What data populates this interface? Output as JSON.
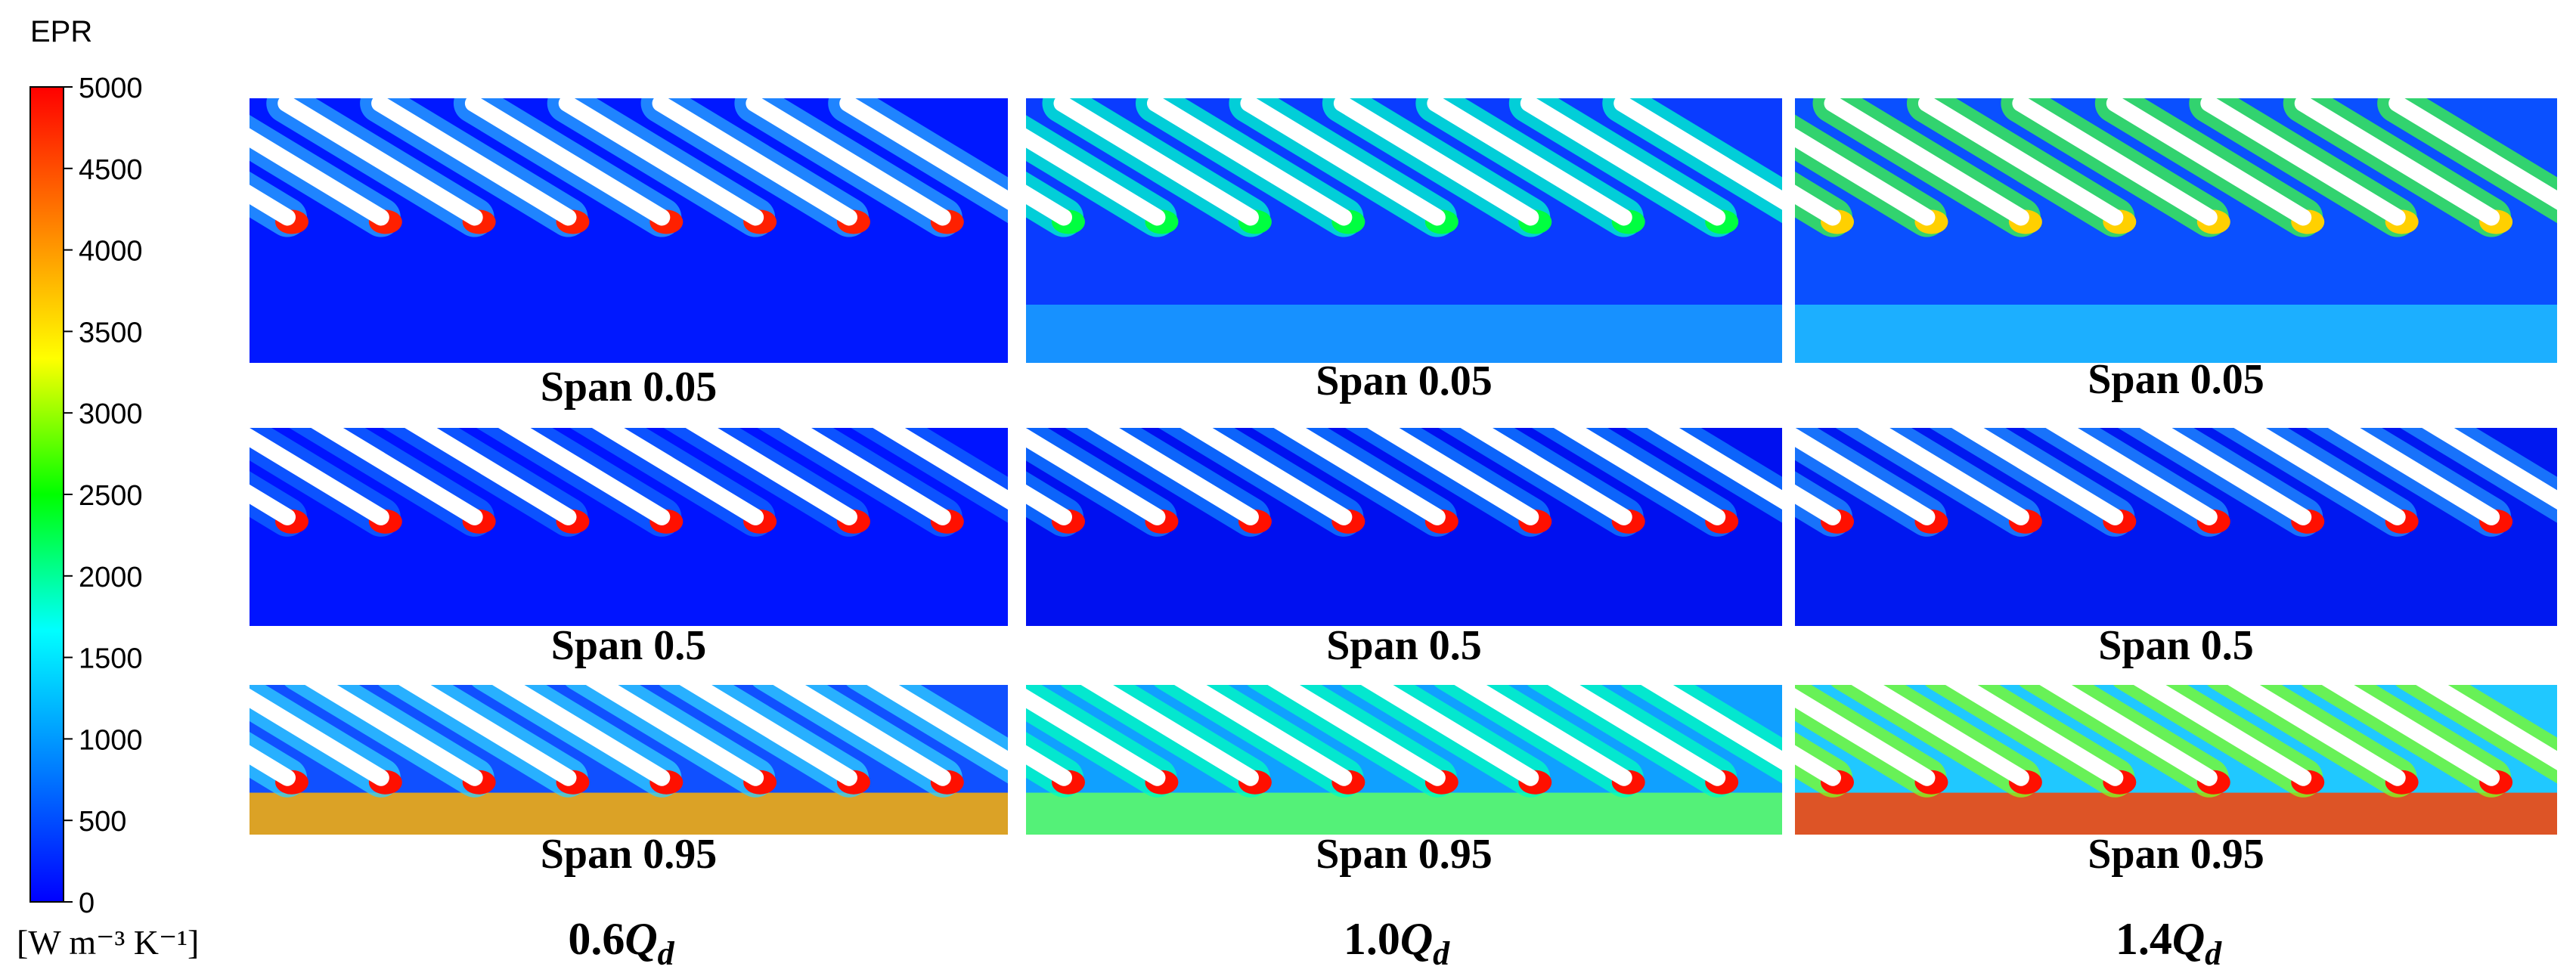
{
  "legend": {
    "title": "EPR",
    "unit": "[W m⁻³ K⁻¹]",
    "ticks": [
      "5000",
      "4500",
      "4000",
      "3500",
      "3000",
      "2500",
      "2000",
      "1500",
      "1000",
      "500",
      "0"
    ],
    "min": 0,
    "max": 5000,
    "colormap": [
      "#0000ff",
      "#0080ff",
      "#00ffff",
      "#00ff00",
      "#ffff00",
      "#ff8000",
      "#ff0000"
    ]
  },
  "columns": [
    {
      "coef": "0.6",
      "symbol": "Q",
      "sub": "d"
    },
    {
      "coef": "1.0",
      "symbol": "Q",
      "sub": "d"
    },
    {
      "coef": "1.4",
      "symbol": "Q",
      "sub": "d"
    }
  ],
  "rows": [
    {
      "label": "Span 0.05"
    },
    {
      "label": "Span 0.5"
    },
    {
      "label": "Span 0.95"
    }
  ],
  "panels": [
    {
      "col": 0,
      "row": 0,
      "bg": "#0018ff",
      "wake": "#2aa8ff",
      "tip": "#ff2000",
      "band": null
    },
    {
      "col": 1,
      "row": 0,
      "bg": "#0a3cff",
      "wake": "#00ffcc",
      "tip": "#00ff40",
      "band": "#1aa0ff"
    },
    {
      "col": 2,
      "row": 0,
      "bg": "#0a50ff",
      "wake": "#40ff40",
      "tip": "#ffd000",
      "band": "#20c0ff"
    },
    {
      "col": 0,
      "row": 1,
      "bg": "#0014ff",
      "wake": "#1068ff",
      "tip": "#ff1000",
      "band": null
    },
    {
      "col": 1,
      "row": 1,
      "bg": "#0010f0",
      "wake": "#1080ff",
      "tip": "#ff1000",
      "band": null
    },
    {
      "col": 2,
      "row": 1,
      "bg": "#0018f0",
      "wake": "#2090ff",
      "tip": "#ff1000",
      "band": null
    },
    {
      "col": 0,
      "row": 2,
      "bg": "#1050ff",
      "wake": "#30d0ff",
      "tip": "#ff1000",
      "band": "#ffb000"
    },
    {
      "col": 1,
      "row": 2,
      "bg": "#10a0ff",
      "wake": "#00ffc0",
      "tip": "#ff1000",
      "band": "#60ff60"
    },
    {
      "col": 2,
      "row": 2,
      "bg": "#20c8ff",
      "wake": "#80ff20",
      "tip": "#ff1000",
      "band": "#ff4000"
    }
  ]
}
